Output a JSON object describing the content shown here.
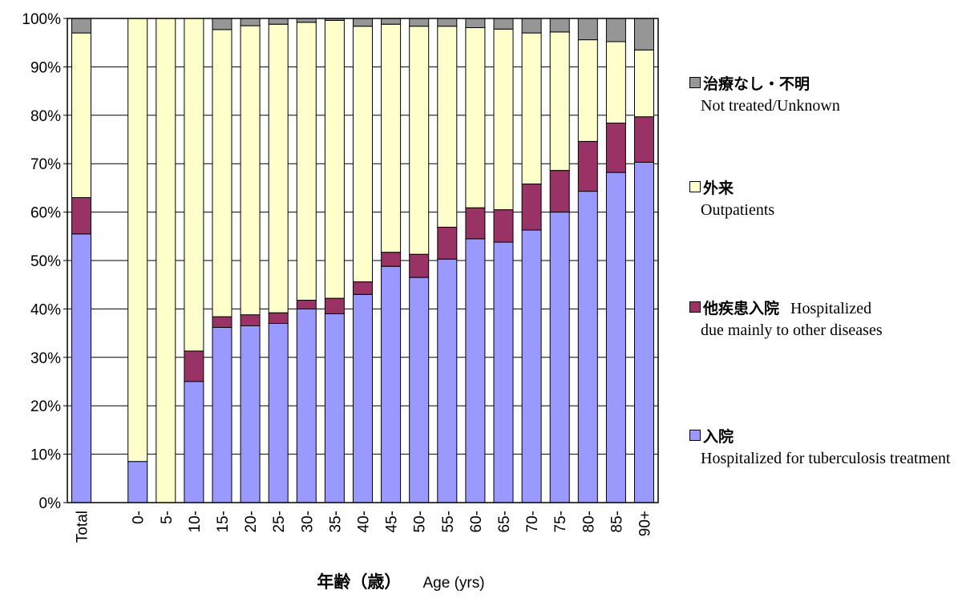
{
  "colors": {
    "hospitalized_tb": "#9999ff",
    "other_disease": "#993366",
    "outpatients": "#ffffcc",
    "not_treated": "#969696"
  },
  "chart_data": {
    "type": "bar",
    "stacked": true,
    "percent": true,
    "categories": [
      "Total",
      "",
      "0-",
      "5-",
      "10-",
      "15-",
      "20-",
      "25-",
      "30-",
      "35-",
      "40-",
      "45-",
      "50-",
      "55-",
      "60-",
      "65-",
      "70-",
      "75-",
      "80-",
      "85-",
      "90+"
    ],
    "y_ticks": [
      "0%",
      "10%",
      "20%",
      "30%",
      "40%",
      "50%",
      "60%",
      "70%",
      "80%",
      "90%",
      "100%"
    ],
    "ylim": [
      0,
      100
    ],
    "grid": true,
    "legend_position": "right",
    "series": [
      {
        "name": "入院 Hospitalized for tuberculosis treatment",
        "values": [
          55.5,
          null,
          8.5,
          0,
          25,
          36.2,
          36.5,
          37,
          40,
          39,
          43,
          48.8,
          46.5,
          50.3,
          54.5,
          53.8,
          56.3,
          60,
          64.3,
          68.2,
          70.3
        ]
      },
      {
        "name": "他疾患入院 Hospitalized due mainly to other diseases",
        "values": [
          7.5,
          null,
          0,
          0,
          6.3,
          2.2,
          2.3,
          2.2,
          1.8,
          3.2,
          2.6,
          2.9,
          4.8,
          6.6,
          6.4,
          6.7,
          9.5,
          8.6,
          10.3,
          10.2,
          9.4
        ]
      },
      {
        "name": "外来 Outpatients",
        "values": [
          34,
          null,
          91.5,
          100,
          68.7,
          59.3,
          59.7,
          59.6,
          57.4,
          57.4,
          52.8,
          47.1,
          47.1,
          41.5,
          37.2,
          37.3,
          31.2,
          28.6,
          21,
          16.8,
          13.8
        ]
      },
      {
        "name": "治療なし・不明 Not treated/Unknown",
        "values": [
          3,
          null,
          0,
          0,
          0,
          2.3,
          1.5,
          1.2,
          0.8,
          0.4,
          1.6,
          1.2,
          1.6,
          1.6,
          1.9,
          2.2,
          3,
          2.8,
          4.4,
          4.8,
          6.5
        ]
      }
    ],
    "x_title_jp": "年齢（歳）",
    "x_title_en": "Age (yrs)"
  },
  "legend": [
    {
      "key": "not_treated",
      "head": "治療なし・不明",
      "head_en": "",
      "sub": "Not treated/Unknown"
    },
    {
      "key": "outpatients",
      "head": "外来",
      "head_en": "",
      "sub": "Outpatients"
    },
    {
      "key": "other_disease",
      "head": "他疾患入院",
      "head_en": "Hospitalized",
      "sub": "due mainly  to other diseases"
    },
    {
      "key": "hospitalized_tb",
      "head": "入院",
      "head_en": "",
      "sub": "Hospitalized for tuberculosis treatment"
    }
  ]
}
